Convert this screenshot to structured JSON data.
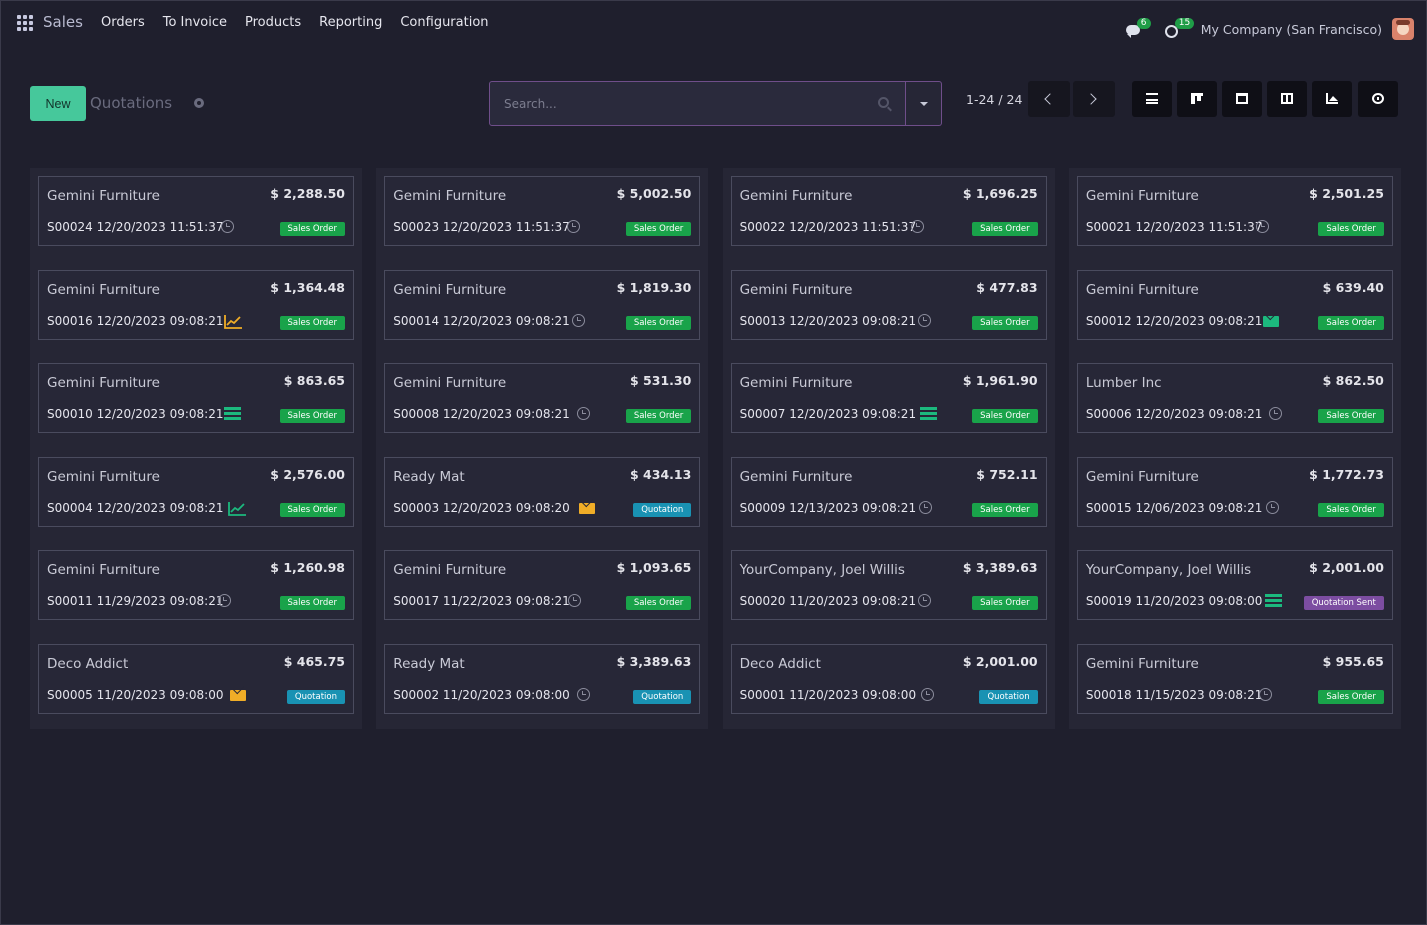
{
  "app": {
    "name": "Sales"
  },
  "menu": [
    "Orders",
    "To Invoice",
    "Products",
    "Reporting",
    "Configuration"
  ],
  "systray": {
    "messages_count": "6",
    "activities_count": "15",
    "company": "My Company (San Francisco)"
  },
  "control": {
    "new_label": "New",
    "breadcrumb": "Quotations",
    "search_placeholder": "Search...",
    "pager": "1-24 / 24"
  },
  "views": [
    "list-view-icon",
    "kanban-view-icon",
    "calendar-view-icon",
    "pivot-view-icon",
    "graph-view-icon",
    "activity-view-icon"
  ],
  "colors": {
    "sales_order": "#19a34a",
    "quotation": "#1992b3",
    "quotation_sent": "#7c4da1",
    "new_button": "#46c89b"
  },
  "records": [
    {
      "customer": "Gemini Furniture",
      "amount": "$ 2,288.50",
      "ref": "S00024 12/20/2023 11:51:37",
      "activity": "clock",
      "status": "Sales Order"
    },
    {
      "customer": "Gemini Furniture",
      "amount": "$ 5,002.50",
      "ref": "S00023 12/20/2023 11:51:37",
      "activity": "clock",
      "status": "Sales Order"
    },
    {
      "customer": "Gemini Furniture",
      "amount": "$ 1,696.25",
      "ref": "S00022 12/20/2023 11:51:37",
      "activity": "clock",
      "status": "Sales Order"
    },
    {
      "customer": "Gemini Furniture",
      "amount": "$ 2,501.25",
      "ref": "S00021 12/20/2023 11:51:37",
      "activity": "clock",
      "status": "Sales Order"
    },
    {
      "customer": "Gemini Furniture",
      "amount": "$ 1,364.48",
      "ref": "S00016 12/20/2023 09:08:21",
      "activity": "chart-orange",
      "status": "Sales Order"
    },
    {
      "customer": "Gemini Furniture",
      "amount": "$ 1,819.30",
      "ref": "S00014 12/20/2023 09:08:21",
      "activity": "clock",
      "status": "Sales Order"
    },
    {
      "customer": "Gemini Furniture",
      "amount": "$ 477.83",
      "ref": "S00013 12/20/2023 09:08:21",
      "activity": "clock",
      "status": "Sales Order"
    },
    {
      "customer": "Gemini Furniture",
      "amount": "$ 639.40",
      "ref": "S00012 12/20/2023 09:08:21",
      "activity": "mail-green",
      "status": "Sales Order"
    },
    {
      "customer": "Gemini Furniture",
      "amount": "$ 863.65",
      "ref": "S00010 12/20/2023 09:08:21",
      "activity": "todo",
      "status": "Sales Order"
    },
    {
      "customer": "Gemini Furniture",
      "amount": "$ 531.30",
      "ref": "S00008 12/20/2023 09:08:21",
      "activity": "clock",
      "status": "Sales Order"
    },
    {
      "customer": "Gemini Furniture",
      "amount": "$ 1,961.90",
      "ref": "S00007 12/20/2023 09:08:21",
      "activity": "todo",
      "status": "Sales Order"
    },
    {
      "customer": "Lumber Inc",
      "amount": "$ 862.50",
      "ref": "S00006 12/20/2023 09:08:21",
      "activity": "clock",
      "status": "Sales Order"
    },
    {
      "customer": "Gemini Furniture",
      "amount": "$ 2,576.00",
      "ref": "S00004 12/20/2023 09:08:21",
      "activity": "chart-green",
      "status": "Sales Order"
    },
    {
      "customer": "Ready Mat",
      "amount": "$ 434.13",
      "ref": "S00003 12/20/2023 09:08:20",
      "activity": "mail-orange",
      "status": "Quotation"
    },
    {
      "customer": "Gemini Furniture",
      "amount": "$ 752.11",
      "ref": "S00009 12/13/2023 09:08:21",
      "activity": "clock",
      "status": "Sales Order"
    },
    {
      "customer": "Gemini Furniture",
      "amount": "$ 1,772.73",
      "ref": "S00015 12/06/2023 09:08:21",
      "activity": "clock",
      "status": "Sales Order"
    },
    {
      "customer": "Gemini Furniture",
      "amount": "$ 1,260.98",
      "ref": "S00011 11/29/2023 09:08:21",
      "activity": "clock",
      "status": "Sales Order"
    },
    {
      "customer": "Gemini Furniture",
      "amount": "$ 1,093.65",
      "ref": "S00017 11/22/2023 09:08:21",
      "activity": "clock",
      "status": "Sales Order"
    },
    {
      "customer": "YourCompany, Joel Willis",
      "amount": "$ 3,389.63",
      "ref": "S00020 11/20/2023 09:08:21",
      "activity": "clock",
      "status": "Sales Order"
    },
    {
      "customer": "YourCompany, Joel Willis",
      "amount": "$ 2,001.00",
      "ref": "S00019 11/20/2023 09:08:00",
      "activity": "todo",
      "status": "Quotation Sent"
    },
    {
      "customer": "Deco Addict",
      "amount": "$ 465.75",
      "ref": "S00005 11/20/2023 09:08:00",
      "activity": "mail-orange",
      "status": "Quotation"
    },
    {
      "customer": "Ready Mat",
      "amount": "$ 3,389.63",
      "ref": "S00002 11/20/2023 09:08:00",
      "activity": "clock",
      "status": "Quotation"
    },
    {
      "customer": "Deco Addict",
      "amount": "$ 2,001.00",
      "ref": "S00001 11/20/2023 09:08:00",
      "activity": "clock",
      "status": "Quotation"
    },
    {
      "customer": "Gemini Furniture",
      "amount": "$ 955.65",
      "ref": "S00018 11/15/2023 09:08:21",
      "activity": "clock",
      "status": "Sales Order"
    }
  ]
}
